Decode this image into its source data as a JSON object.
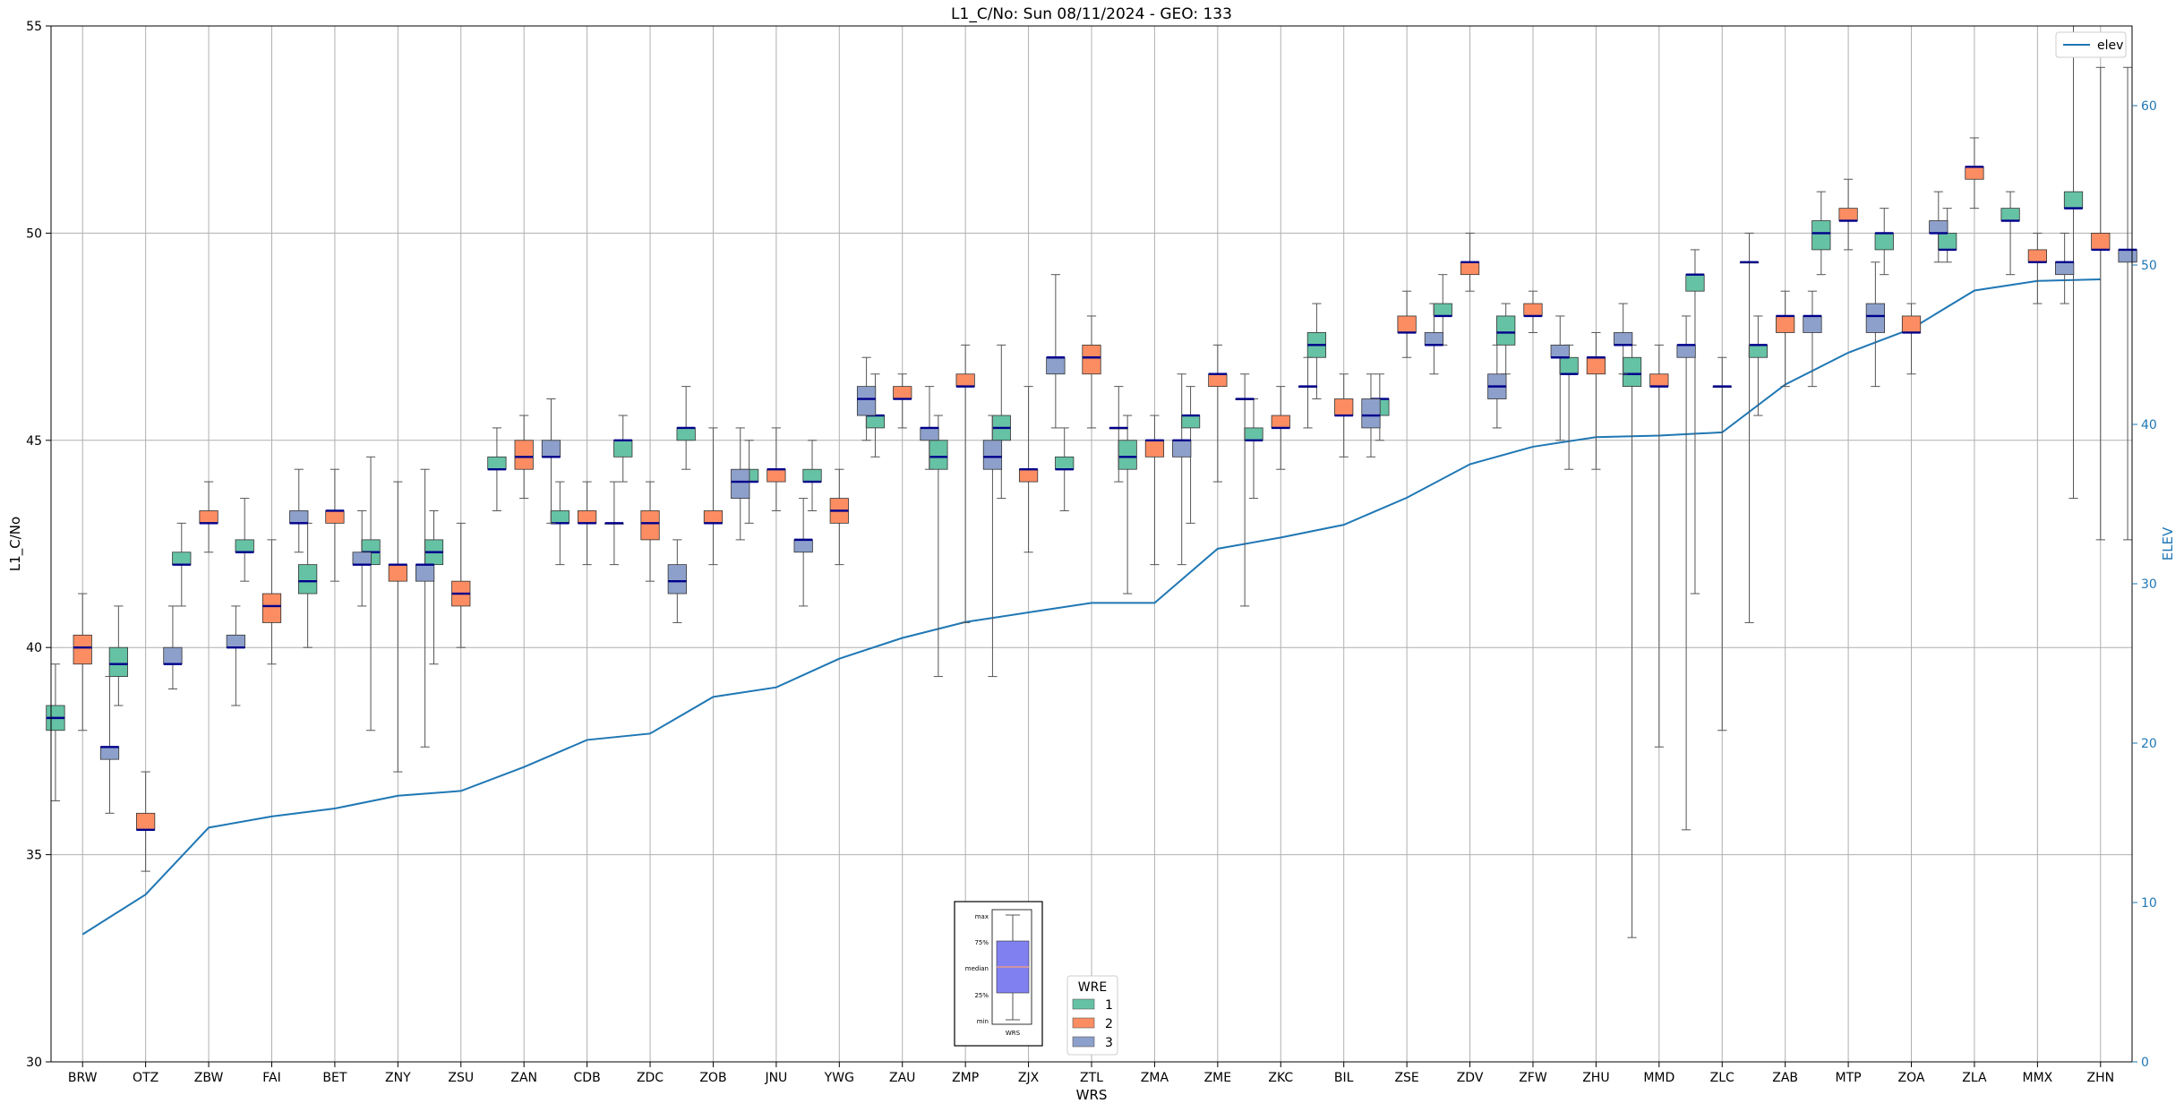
{
  "chart_data": {
    "type": "box",
    "title": "L1_C/No: Sun 08/11/2024 - GEO: 133",
    "xlabel": "WRS",
    "ylabel": "L1_C/No",
    "y2label": "ELEV",
    "ylim": [
      30,
      55
    ],
    "y2lim": [
      0,
      65
    ],
    "yticks": [
      30,
      35,
      40,
      45,
      50,
      55
    ],
    "y2ticks": [
      0,
      10,
      20,
      30,
      40,
      50,
      60
    ],
    "grid": true,
    "group_legend": {
      "title": "WRE",
      "placement": "bottom-center",
      "entries": [
        {
          "label": "1",
          "color": "#66c2a5"
        },
        {
          "label": "2",
          "color": "#fc8d62"
        },
        {
          "label": "3",
          "color": "#8da0cb"
        }
      ]
    },
    "line_legend": {
      "label": "elev",
      "placement": "top-right",
      "color": "#1f77b4"
    },
    "key_figure": {
      "labels": [
        "max",
        "75%",
        "median",
        "25%",
        "min"
      ],
      "xlabel": "WRS"
    },
    "categories": [
      "BRW",
      "OTZ",
      "ZBW",
      "FAI",
      "BET",
      "ZNY",
      "ZSU",
      "ZAN",
      "CDB",
      "ZDC",
      "ZOB",
      "JNU",
      "YWG",
      "ZAU",
      "ZMP",
      "ZJX",
      "ZTL",
      "ZMA",
      "ZME",
      "ZKC",
      "BIL",
      "ZSE",
      "ZDV",
      "ZFW",
      "ZHU",
      "MMD",
      "ZLC",
      "ZAB",
      "MTP",
      "ZOA",
      "ZLA",
      "MMX",
      "ZHN"
    ],
    "elev": [
      8.0,
      10.5,
      14.7,
      15.4,
      15.9,
      16.7,
      17.0,
      18.5,
      20.2,
      20.6,
      22.9,
      23.5,
      25.3,
      26.6,
      27.6,
      28.2,
      28.8,
      28.8,
      32.2,
      32.9,
      33.7,
      35.4,
      37.5,
      38.6,
      39.2,
      39.3,
      39.5,
      42.5,
      44.5,
      46.0,
      48.4,
      49.0,
      49.1
    ],
    "series": [
      {
        "name": "1",
        "boxes": [
          [
            36.3,
            38.0,
            38.3,
            38.6,
            39.6
          ],
          [
            38.6,
            39.3,
            39.6,
            40.0,
            41.0
          ],
          [
            41.0,
            42.0,
            42.0,
            42.3,
            43.0
          ],
          [
            41.6,
            42.3,
            42.3,
            42.6,
            43.6
          ],
          [
            40.0,
            41.3,
            41.6,
            42.0,
            43.0
          ],
          [
            38.0,
            42.0,
            42.3,
            42.6,
            44.6
          ],
          [
            39.6,
            42.0,
            42.3,
            42.6,
            43.3
          ],
          [
            43.3,
            44.3,
            44.3,
            44.6,
            45.3
          ],
          [
            42.0,
            43.0,
            43.0,
            43.3,
            44.0
          ],
          [
            44.0,
            44.6,
            45.0,
            45.0,
            45.6
          ],
          [
            44.3,
            45.0,
            45.3,
            45.3,
            46.3
          ],
          [
            43.0,
            44.0,
            44.0,
            44.3,
            45.0
          ],
          [
            43.3,
            44.0,
            44.0,
            44.3,
            45.0
          ],
          [
            44.6,
            45.3,
            45.6,
            45.6,
            46.6
          ],
          [
            39.3,
            44.3,
            44.6,
            45.0,
            45.6
          ],
          [
            43.6,
            45.0,
            45.3,
            45.6,
            47.3
          ],
          [
            43.3,
            44.3,
            44.3,
            44.6,
            45.3
          ],
          [
            41.3,
            44.3,
            44.6,
            45.0,
            45.6
          ],
          [
            43.0,
            45.3,
            45.6,
            45.6,
            46.3
          ],
          [
            43.6,
            45.0,
            45.0,
            45.3,
            46.0
          ],
          [
            46.0,
            47.0,
            47.3,
            47.6,
            48.3
          ],
          [
            45.0,
            45.6,
            46.0,
            46.0,
            46.6
          ],
          [
            47.3,
            48.0,
            48.0,
            48.3,
            49.0
          ],
          [
            46.6,
            47.3,
            47.6,
            48.0,
            48.3
          ],
          [
            44.3,
            46.6,
            46.6,
            47.0,
            47.3
          ],
          [
            33.0,
            46.3,
            46.6,
            47.0,
            47.3
          ],
          [
            41.3,
            48.6,
            49.0,
            49.0,
            49.6
          ],
          [
            45.6,
            47.0,
            47.3,
            47.3,
            48.0
          ],
          [
            49.0,
            49.6,
            50.0,
            50.3,
            51.0
          ],
          [
            49.0,
            49.6,
            50.0,
            50.0,
            50.6
          ],
          [
            49.3,
            49.6,
            49.6,
            50.0,
            50.6
          ],
          [
            49.0,
            50.3,
            50.3,
            50.6,
            51.0
          ],
          [
            43.6,
            50.6,
            50.6,
            51.0,
            55.0
          ]
        ]
      },
      {
        "name": "2",
        "boxes": [
          [
            38.0,
            39.6,
            40.0,
            40.3,
            41.3
          ],
          [
            34.6,
            35.6,
            35.6,
            36.0,
            37.0
          ],
          [
            42.3,
            43.0,
            43.0,
            43.3,
            44.0
          ],
          [
            39.6,
            40.6,
            41.0,
            41.3,
            42.6
          ],
          [
            41.6,
            43.0,
            43.3,
            43.3,
            44.3
          ],
          [
            37.0,
            41.6,
            42.0,
            42.0,
            44.0
          ],
          [
            40.0,
            41.0,
            41.3,
            41.6,
            43.0
          ],
          [
            43.6,
            44.3,
            44.6,
            45.0,
            45.6
          ],
          [
            42.0,
            43.0,
            43.0,
            43.3,
            44.0
          ],
          [
            41.6,
            42.6,
            43.0,
            43.3,
            44.0
          ],
          [
            42.0,
            43.0,
            43.0,
            43.3,
            45.3
          ],
          [
            43.3,
            44.0,
            44.3,
            44.3,
            45.3
          ],
          [
            42.0,
            43.0,
            43.3,
            43.6,
            44.3
          ],
          [
            45.3,
            46.0,
            46.0,
            46.3,
            46.6
          ],
          [
            40.6,
            46.3,
            46.3,
            46.6,
            47.3
          ],
          [
            42.3,
            44.0,
            44.3,
            44.3,
            46.3
          ],
          [
            45.3,
            46.6,
            47.0,
            47.3,
            48.0
          ],
          [
            42.0,
            44.6,
            45.0,
            45.0,
            45.6
          ],
          [
            44.0,
            46.3,
            46.6,
            46.6,
            47.3
          ],
          [
            44.3,
            45.3,
            45.3,
            45.6,
            46.3
          ],
          [
            44.6,
            45.6,
            45.6,
            46.0,
            46.6
          ],
          [
            47.0,
            47.6,
            47.6,
            48.0,
            48.6
          ],
          [
            48.6,
            49.0,
            49.3,
            49.3,
            50.0
          ],
          [
            47.6,
            48.0,
            48.0,
            48.3,
            48.6
          ],
          [
            44.3,
            46.6,
            47.0,
            47.0,
            47.6
          ],
          [
            37.6,
            46.3,
            46.3,
            46.6,
            47.3
          ],
          [
            38.0,
            46.3,
            46.3,
            46.3,
            47.0
          ],
          [
            46.3,
            47.6,
            48.0,
            48.0,
            48.6
          ],
          [
            49.6,
            50.3,
            50.3,
            50.6,
            51.3
          ],
          [
            46.6,
            47.6,
            47.6,
            48.0,
            48.3
          ],
          [
            50.6,
            51.3,
            51.6,
            51.6,
            52.3
          ],
          [
            48.3,
            49.3,
            49.3,
            49.6,
            50.0
          ],
          [
            42.6,
            49.6,
            49.6,
            50.0,
            54.0
          ]
        ]
      },
      {
        "name": "3",
        "boxes": [
          [
            36.0,
            37.3,
            37.6,
            37.6,
            39.3
          ],
          [
            39.0,
            39.6,
            39.6,
            40.0,
            41.0
          ],
          [
            38.6,
            40.0,
            40.0,
            40.3,
            41.0
          ],
          [
            42.3,
            43.0,
            43.0,
            43.3,
            44.3
          ],
          [
            41.0,
            42.0,
            42.0,
            42.3,
            43.3
          ],
          [
            37.6,
            41.6,
            42.0,
            42.0,
            44.3
          ],
          [
            43.0,
            44.6,
            44.6,
            45.0,
            46.0
          ],
          [
            42.0,
            43.0,
            43.0,
            43.0,
            44.0
          ],
          [
            40.6,
            41.3,
            41.6,
            42.0,
            42.6
          ],
          [
            42.6,
            43.6,
            44.0,
            44.3,
            45.3
          ],
          [
            41.0,
            42.3,
            42.6,
            42.6,
            43.6
          ],
          [
            45.0,
            45.6,
            46.0,
            46.3,
            47.0
          ],
          [
            44.3,
            45.0,
            45.3,
            45.3,
            46.3
          ],
          [
            39.3,
            44.3,
            44.6,
            45.0,
            45.6
          ],
          [
            45.3,
            46.6,
            47.0,
            47.0,
            49.0
          ],
          [
            44.0,
            45.3,
            45.3,
            45.3,
            46.3
          ],
          [
            42.0,
            44.6,
            45.0,
            45.0,
            46.6
          ],
          [
            41.0,
            46.0,
            46.0,
            46.0,
            46.6
          ],
          [
            45.3,
            46.3,
            46.3,
            46.3,
            47.0
          ],
          [
            44.6,
            45.3,
            45.6,
            46.0,
            46.6
          ],
          [
            46.6,
            47.3,
            47.3,
            47.6,
            48.3
          ],
          [
            45.3,
            46.0,
            46.3,
            46.6,
            47.3
          ],
          [
            45.0,
            47.0,
            47.0,
            47.3,
            48.0
          ],
          [
            46.6,
            47.3,
            47.3,
            47.6,
            48.3
          ],
          [
            35.6,
            47.0,
            47.3,
            47.3,
            48.0
          ],
          [
            40.6,
            49.3,
            49.3,
            49.3,
            50.0
          ],
          [
            46.3,
            47.6,
            48.0,
            48.0,
            48.6
          ],
          [
            46.3,
            47.6,
            48.0,
            48.3,
            49.3
          ],
          [
            49.3,
            50.0,
            50.0,
            50.3,
            51.0
          ],
          [
            48.3,
            49.0,
            49.3,
            49.3,
            50.0
          ],
          [
            42.6,
            49.3,
            49.6,
            49.6,
            54.0
          ]
        ],
        "positions": [
          0,
          1,
          2,
          3,
          4,
          5,
          7,
          8,
          9,
          10,
          11,
          12,
          13,
          14,
          15,
          16,
          17,
          18,
          19,
          20,
          21,
          22,
          23,
          24,
          25,
          26,
          27,
          28,
          29,
          31,
          32
        ]
      }
    ]
  }
}
